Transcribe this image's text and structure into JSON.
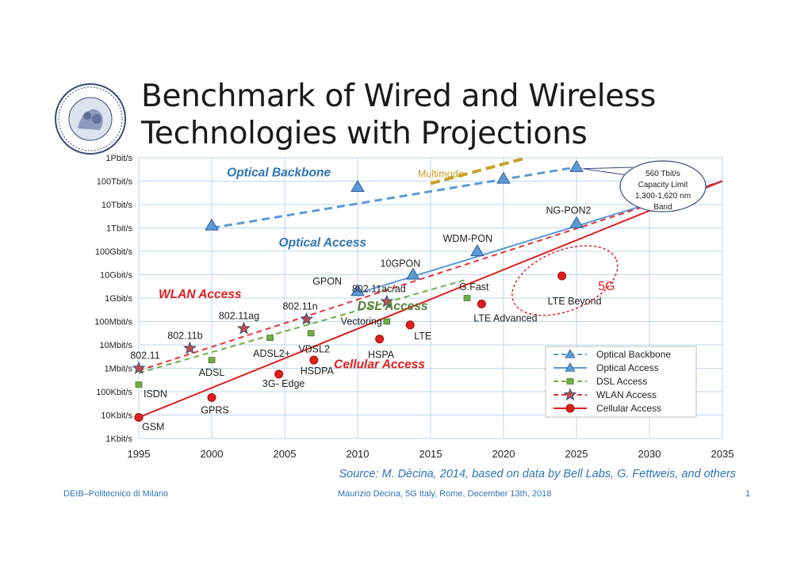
{
  "title_line1": "Benchmark of Wired and Wireless",
  "title_line2": "Technologies with Projections",
  "logo": {
    "text": "POLITECNICO MILANO"
  },
  "source": "Source: M. Dècina, 2014, based on data by Bell Labs, G. Fettweis, and others",
  "footer": {
    "left": "DEIB–Politecnico di Milano",
    "center": "Maurizio Dècina, 5G Italy, Rome, December 13th, 2018",
    "page": "1"
  },
  "colors": {
    "optical_backbone": "#5b9bd5",
    "optical_access": "#5b9bd5",
    "dsl": "#70ad47",
    "wlan": "#e8333b",
    "cellular": "#e01e1e",
    "multimode": "#c9a227",
    "label_blue": "#2e75b6",
    "label_red": "#e01e1e",
    "label_green": "#548235",
    "grid": "#bdd7ee"
  },
  "chart_data": {
    "type": "line",
    "xlim": [
      1995,
      2035
    ],
    "x_ticks": [
      "1995",
      "2000",
      "2005",
      "2010",
      "2015",
      "2020",
      "2025",
      "2030",
      "2035"
    ],
    "y_scale": "log",
    "y_ticks": [
      "1Kbit/s",
      "10Kbit/s",
      "100Kbit/s",
      "1Mbit/s",
      "10Mbit/s",
      "100Mbit/s",
      "1Gbit/s",
      "10Gbit/s",
      "100Gbit/s",
      "1Tbit/s",
      "10Tbit/s",
      "100Tbit/s",
      "1Pbit/s"
    ],
    "grid": true,
    "legend_position": "lower-right",
    "series": [
      {
        "name": "Optical Backbone",
        "key": "optical_backbone",
        "style": "dashed",
        "marker": "triangle",
        "line_x": [
          2000,
          2025
        ],
        "line_exp": [
          12,
          14.6
        ],
        "points": [
          {
            "x": 2000,
            "exp": 12.1,
            "label": ""
          },
          {
            "x": 2010,
            "exp": 13.75,
            "label": ""
          },
          {
            "x": 2020,
            "exp": 14.1,
            "label": ""
          },
          {
            "x": 2025,
            "exp": 14.6,
            "label": ""
          }
        ]
      },
      {
        "name": "Optical Access",
        "key": "optical_access",
        "style": "solid",
        "marker": "triangle",
        "line_x": [
          2010,
          2035
        ],
        "line_exp": [
          9.2,
          14.0
        ],
        "points": [
          {
            "x": 2010,
            "exp": 9.3,
            "label": "GPON"
          },
          {
            "x": 2013.8,
            "exp": 10.0,
            "label": "10GPON"
          },
          {
            "x": 2018.2,
            "exp": 11.0,
            "label": "WDM-PON"
          },
          {
            "x": 2025,
            "exp": 12.2,
            "label": "NG-PON2"
          }
        ]
      },
      {
        "name": "DSL Access",
        "key": "dsl",
        "style": "dashed",
        "marker": "square",
        "line_x": [
          1995,
          2017.5
        ],
        "line_exp": [
          5.8,
          9.8
        ],
        "points": [
          {
            "x": 1995,
            "exp": 5.3,
            "label": "ISDN"
          },
          {
            "x": 2000,
            "exp": 6.35,
            "label": "ADSL"
          },
          {
            "x": 2004,
            "exp": 7.3,
            "label": "ADSL2+"
          },
          {
            "x": 2006.8,
            "exp": 7.5,
            "label": "VDSL2"
          },
          {
            "x": 2012,
            "exp": 8.0,
            "label": "Vectoring"
          },
          {
            "x": 2017.5,
            "exp": 9.0,
            "label": "G.Fast"
          }
        ]
      },
      {
        "name": "WLAN Access",
        "key": "wlan",
        "style": "dashed",
        "marker": "star",
        "line_x": [
          1995,
          2035
        ],
        "line_exp": [
          5.9,
          14.0
        ],
        "points": [
          {
            "x": 1995,
            "exp": 6.0,
            "label": "802.11"
          },
          {
            "x": 1998.5,
            "exp": 6.85,
            "label": "802.11b"
          },
          {
            "x": 2002.2,
            "exp": 7.7,
            "label": "802.11ag"
          },
          {
            "x": 2006.5,
            "exp": 8.1,
            "label": "802.11n"
          },
          {
            "x": 2012,
            "exp": 8.85,
            "label": "802.11ac/ad"
          }
        ]
      },
      {
        "name": "Cellular Access",
        "key": "cellular",
        "style": "solid",
        "marker": "circle",
        "line_x": [
          1995,
          2035
        ],
        "line_exp": [
          3.9,
          14.0
        ],
        "points": [
          {
            "x": 1995,
            "exp": 3.9,
            "label": "GSM"
          },
          {
            "x": 2000,
            "exp": 4.75,
            "label": "GPRS"
          },
          {
            "x": 2004.6,
            "exp": 5.75,
            "label": "3G- Edge"
          },
          {
            "x": 2007,
            "exp": 6.35,
            "label": "HSDPA"
          },
          {
            "x": 2011.5,
            "exp": 7.25,
            "label": "HSPA"
          },
          {
            "x": 2013.6,
            "exp": 7.85,
            "label": "LTE"
          },
          {
            "x": 2018.5,
            "exp": 8.75,
            "label": "LTE Advanced"
          },
          {
            "x": 2024,
            "exp": 9.95,
            "label": "LTE Beyond"
          }
        ]
      }
    ],
    "multimode": {
      "label": "Multimode",
      "x": [
        2015,
        2021.6
      ],
      "exp": [
        13.9,
        15.0
      ]
    },
    "category_labels": [
      {
        "text": "Optical Backbone",
        "key": "label_blue",
        "x": 2004.6,
        "exp": 14.2
      },
      {
        "text": "Optical Access",
        "key": "label_blue",
        "x": 2007.6,
        "exp": 11.2
      },
      {
        "text": "WLAN Access",
        "key": "label_red",
        "x": 1999.2,
        "exp": 9.0
      },
      {
        "text": "DSL Access",
        "key": "label_green",
        "x": 2012.4,
        "exp": 8.5
      },
      {
        "text": "Cellular Access",
        "key": "label_red",
        "x": 2011.5,
        "exp": 6.0
      }
    ],
    "callout": {
      "lines": [
        "560 Tbit/s",
        "Capacity Limit",
        "1,300-1,620 nm",
        "Band"
      ]
    },
    "highlight": {
      "label": "5G"
    }
  }
}
